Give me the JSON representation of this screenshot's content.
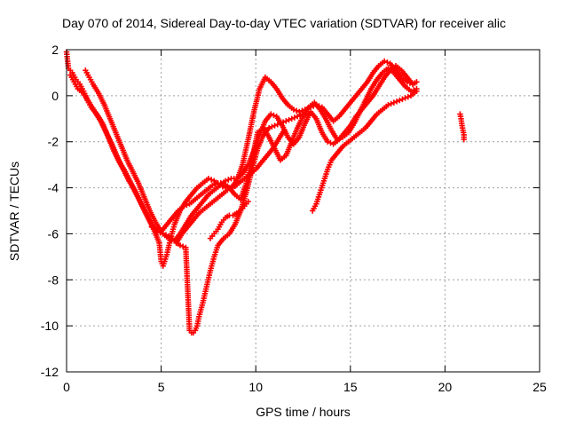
{
  "chart_data": {
    "type": "scatter",
    "title": "Day 070 of 2014, Sidereal Day-to-day VTEC variation (SDTVAR) for receiver alic",
    "xlabel": "GPS time / hours",
    "ylabel": "SDTVAR / TECUs",
    "xlim": [
      0,
      25
    ],
    "ylim": [
      -12,
      2
    ],
    "xticks": [
      "0",
      "5",
      "10",
      "15",
      "20",
      "25"
    ],
    "yticks": [
      "2",
      "0",
      "-2",
      "-4",
      "-6",
      "-8",
      "-10",
      "-12"
    ],
    "grid": true,
    "marker": "plus",
    "series_color": "#ff0000",
    "series": [
      {
        "x": [
          0.0,
          0.1,
          0.3,
          0.5,
          0.7,
          0.9,
          1.1,
          1.3,
          1.6,
          1.9,
          2.2,
          2.5,
          2.8,
          3.1,
          3.4,
          3.7,
          4.0,
          4.3,
          4.6,
          4.9,
          5.0,
          5.1,
          5.3,
          5.5,
          5.7,
          6.0,
          6.3,
          6.6,
          6.9,
          7.2,
          7.5,
          7.8,
          8.1,
          8.4,
          8.7,
          9.0,
          9.3,
          9.6,
          9.9,
          10.2,
          10.5,
          10.8,
          11.1,
          11.4,
          11.7,
          12.0,
          12.3,
          12.6,
          12.9,
          13.2,
          13.5,
          13.8,
          14.1,
          14.4,
          14.7,
          15.0,
          15.3,
          15.6,
          15.9,
          16.2,
          16.5,
          16.8,
          17.1,
          17.4,
          17.7,
          18.0,
          18.3,
          18.5
        ],
        "y": [
          1.9,
          1.2,
          1.0,
          0.7,
          0.5,
          0.2,
          -0.2,
          -0.5,
          -0.8,
          -1.2,
          -1.8,
          -2.4,
          -2.9,
          -3.3,
          -3.8,
          -4.3,
          -4.8,
          -5.3,
          -5.8,
          -6.4,
          -7.2,
          -7.4,
          -6.9,
          -6.2,
          -5.6,
          -5.0,
          -4.6,
          -4.3,
          -4.0,
          -3.8,
          -3.6,
          -3.7,
          -3.9,
          -4.0,
          -4.0,
          -3.7,
          -3.0,
          -1.9,
          -0.7,
          0.3,
          0.8,
          0.6,
          0.3,
          -0.1,
          -0.4,
          -0.6,
          -0.7,
          -0.6,
          -0.5,
          -0.4,
          -0.5,
          -0.8,
          -1.1,
          -0.9,
          -0.6,
          -0.3,
          0.0,
          0.3,
          0.6,
          1.0,
          1.3,
          1.5,
          1.4,
          1.1,
          0.8,
          0.6,
          0.5,
          0.6
        ]
      },
      {
        "x": [
          0.2,
          0.4,
          0.6,
          0.9,
          1.2,
          1.5,
          1.8,
          2.1,
          2.4,
          2.7,
          3.0,
          3.3,
          3.6,
          3.9,
          4.2,
          4.5,
          4.8,
          5.1,
          5.4,
          5.7,
          6.0,
          6.3,
          6.6,
          6.9,
          7.2,
          7.5,
          7.8,
          8.1,
          8.4,
          8.7,
          9.0,
          9.3,
          9.6,
          9.9,
          10.2,
          10.5,
          10.8,
          11.1,
          11.4,
          11.7,
          12.0,
          12.3,
          12.6,
          12.9,
          13.2,
          13.5,
          13.8,
          14.1,
          14.4,
          14.7,
          15.0,
          15.3,
          15.6,
          15.9,
          16.2,
          16.5,
          16.8,
          17.1,
          17.4,
          17.7,
          18.0,
          18.3
        ],
        "y": [
          0.9,
          0.6,
          0.3,
          0.1,
          -0.3,
          -0.7,
          -1.1,
          -1.6,
          -2.1,
          -2.7,
          -3.2,
          -3.7,
          -4.1,
          -4.6,
          -5.1,
          -5.6,
          -5.9,
          -6.0,
          -6.2,
          -6.3,
          -6.0,
          -5.6,
          -5.2,
          -4.9,
          -4.6,
          -4.3,
          -4.1,
          -3.9,
          -3.7,
          -3.6,
          -3.6,
          -3.4,
          -3.0,
          -2.4,
          -1.7,
          -1.1,
          -0.8,
          -0.9,
          -1.3,
          -1.8,
          -2.1,
          -1.8,
          -1.2,
          -0.7,
          -1.0,
          -1.6,
          -2.0,
          -2.1,
          -1.9,
          -1.6,
          -1.3,
          -0.9,
          -0.6,
          -0.3,
          0.0,
          0.4,
          0.8,
          1.1,
          1.3,
          1.1,
          0.8,
          0.5
        ]
      },
      {
        "x": [
          1.0,
          1.2,
          1.4,
          1.7,
          2.0,
          2.3,
          2.6,
          2.9,
          3.2,
          3.5,
          3.8,
          4.1,
          4.4,
          4.7,
          5.0,
          5.3,
          5.6,
          5.9,
          6.2,
          6.5,
          6.8,
          7.1,
          7.4,
          7.7,
          8.0,
          8.3,
          8.6,
          8.9,
          9.2,
          9.5,
          9.8,
          10.1,
          10.4,
          10.7,
          11.0,
          11.3,
          11.6,
          11.9,
          12.2,
          12.5,
          12.8,
          13.1,
          13.4,
          13.7,
          14.0,
          14.3,
          14.6,
          14.9,
          15.2,
          15.5,
          15.8,
          16.1,
          16.4,
          16.7,
          17.0,
          17.3,
          17.6,
          17.9,
          18.2,
          18.5
        ],
        "y": [
          1.1,
          0.8,
          0.5,
          0.1,
          -0.4,
          -1.0,
          -1.6,
          -2.2,
          -2.8,
          -3.3,
          -3.8,
          -4.4,
          -5.0,
          -5.5,
          -5.9,
          -5.6,
          -5.3,
          -5.0,
          -4.8,
          -4.7,
          -4.5,
          -4.3,
          -4.1,
          -3.9,
          -3.8,
          -3.8,
          -4.0,
          -4.3,
          -4.5,
          -3.8,
          -2.8,
          -1.6,
          -1.4,
          -1.8,
          -2.3,
          -2.8,
          -2.6,
          -2.0,
          -1.4,
          -0.9,
          -0.5,
          -0.3,
          -0.6,
          -1.0,
          -1.5,
          -1.9,
          -1.8,
          -1.6,
          -1.2,
          -0.7,
          -0.2,
          0.3,
          0.7,
          1.0,
          1.2,
          1.0,
          0.7,
          0.4,
          0.2,
          0.3
        ]
      },
      {
        "x": [
          4.5,
          4.8,
          5.1,
          5.4,
          5.7,
          6.0,
          6.3,
          6.5,
          6.6,
          6.7,
          6.8,
          6.9,
          7.0,
          7.2,
          7.4,
          7.6,
          7.8,
          8.0,
          8.3,
          8.6,
          8.9,
          9.2,
          9.5,
          9.8,
          10.1,
          10.4,
          10.7,
          11.0,
          11.3,
          11.6,
          11.9,
          12.2,
          12.5,
          12.8
        ],
        "y": [
          -5.7,
          -5.9,
          -6.0,
          -6.1,
          -6.3,
          -6.5,
          -6.6,
          -10.2,
          -10.3,
          -10.3,
          -10.2,
          -10.0,
          -9.6,
          -9.0,
          -8.3,
          -7.6,
          -7.0,
          -6.5,
          -6.2,
          -6.0,
          -5.6,
          -5.0,
          -4.2,
          -3.2,
          -2.3,
          -1.7,
          -1.4,
          -1.3,
          -1.2,
          -1.1,
          -1.0,
          -0.9,
          -0.8,
          -0.8
        ]
      },
      {
        "x": [
          5.8,
          6.1,
          6.4,
          6.7,
          7.0,
          7.3,
          7.6,
          7.9,
          8.2,
          8.5,
          8.8,
          9.1,
          9.4,
          9.7,
          10.0,
          10.3,
          10.6,
          10.9,
          11.2,
          11.5
        ],
        "y": [
          -6.4,
          -6.0,
          -5.7,
          -5.4,
          -5.1,
          -4.9,
          -4.7,
          -4.5,
          -4.3,
          -4.1,
          -4.0,
          -3.8,
          -3.6,
          -3.4,
          -3.2,
          -2.9,
          -2.6,
          -2.3,
          -1.9,
          -1.5
        ]
      },
      {
        "x": [
          13.0,
          13.2,
          13.4,
          13.6,
          13.8,
          14.0,
          14.3,
          14.6,
          14.9,
          15.2,
          15.5,
          15.8,
          16.1,
          16.4,
          16.7,
          17.0,
          17.3,
          17.6,
          17.9,
          18.2,
          18.5
        ],
        "y": [
          -5.0,
          -4.7,
          -4.2,
          -3.7,
          -3.2,
          -2.8,
          -2.5,
          -2.2,
          -2.0,
          -1.8,
          -1.6,
          -1.4,
          -1.1,
          -0.8,
          -0.6,
          -0.4,
          -0.3,
          -0.2,
          -0.1,
          0.0,
          0.2
        ]
      },
      {
        "x": [
          7.6,
          7.8,
          8.0,
          8.2,
          8.4,
          8.6,
          8.8,
          9.0,
          9.2,
          9.4,
          9.6
        ],
        "y": [
          -6.2,
          -6.0,
          -5.8,
          -5.5,
          -5.3,
          -5.2,
          -5.2,
          -5.1,
          -5.0,
          -4.8,
          -4.6
        ]
      },
      {
        "x": [
          20.8,
          20.85,
          20.9,
          20.95,
          21.0,
          21.0
        ],
        "y": [
          -0.8,
          -1.0,
          -1.3,
          -1.5,
          -1.7,
          -1.9
        ]
      }
    ]
  }
}
